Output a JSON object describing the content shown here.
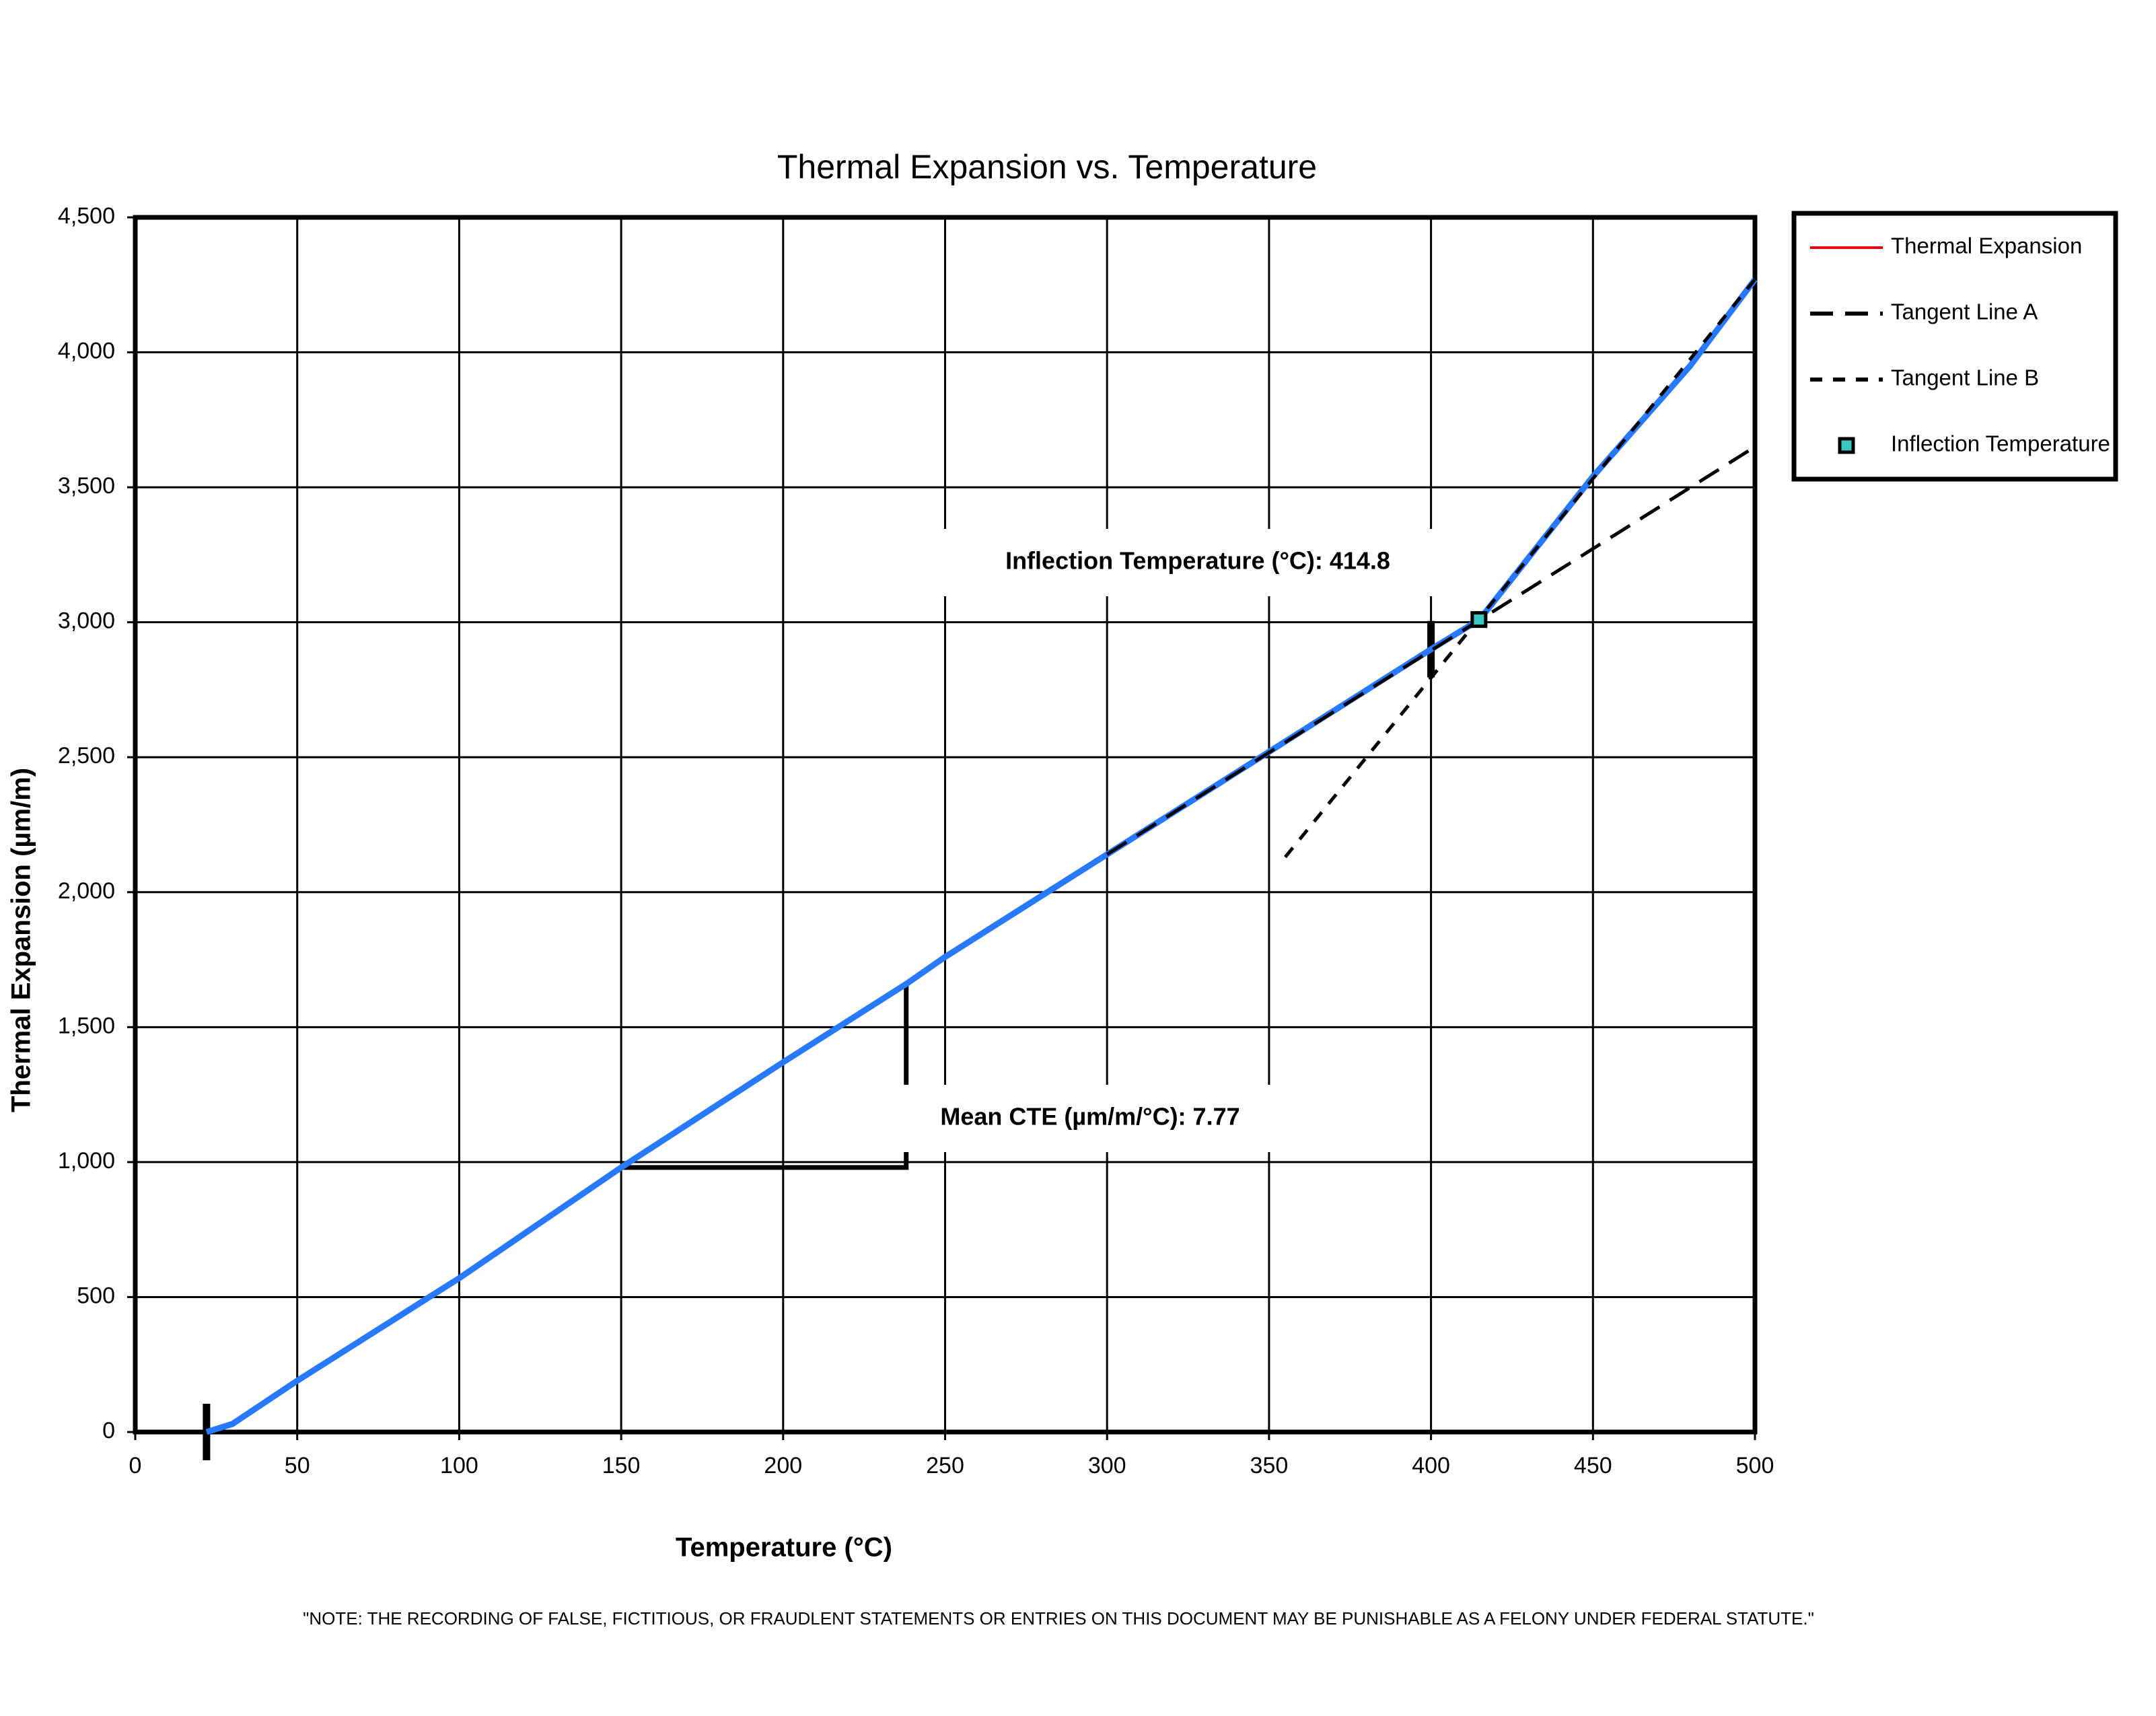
{
  "chart_data": {
    "type": "line",
    "title": "Thermal Expansion vs. Temperature",
    "x_label": "Temperature (°C)",
    "y_label": "Thermal Expansion (µm/m)",
    "note": "\"NOTE: THE RECORDING OF FALSE, FICTITIOUS, OR FRAUDLENT STATEMENTS OR ENTRIES ON THIS DOCUMENT MAY BE PUNISHABLE AS A FELONY UNDER FEDERAL STATUTE.\"",
    "annotations": [
      "Inflection Temperature (°C):  414.8",
      "Mean CTE (µm/m/°C): 7.77"
    ],
    "xlim": [
      0,
      500
    ],
    "xticks": [
      0,
      50,
      100,
      150,
      200,
      250,
      300,
      350,
      400,
      450,
      500
    ],
    "ylim": [
      0,
      4500
    ],
    "yticks": [
      0,
      500,
      {
        "value": 1000,
        "label": "1,000"
      },
      {
        "value": 1500,
        "label": "1,500"
      },
      {
        "value": 2000,
        "label": "2,000"
      },
      {
        "value": 2500,
        "label": "2,500"
      },
      {
        "value": 3000,
        "label": "3,000"
      },
      {
        "value": 3500,
        "label": "3,500"
      },
      {
        "value": 4000,
        "label": "4,000"
      },
      {
        "value": 4500,
        "label": "4,500"
      }
    ],
    "grid": true,
    "legend": "right",
    "series": [
      {
        "name": "Thermal Expansion",
        "color": "#2979ff",
        "style": "solid",
        "x": [
          22,
          30,
          50,
          100,
          150,
          200,
          238,
          250,
          300,
          350,
          400,
          415,
          450,
          480,
          500
        ],
        "values": [
          0,
          30,
          190,
          570,
          980,
          1370,
          1660,
          1760,
          2140,
          2520,
          2900,
          3010,
          3540,
          3950,
          4270
        ]
      },
      {
        "name": "Tangent Line A",
        "color": "#000000",
        "style": "long-dash",
        "x": [
          300,
          500
        ],
        "values": [
          2140,
          3650
        ]
      },
      {
        "name": "Tangent Line B",
        "color": "#000000",
        "style": "short-dash",
        "x": [
          355,
          500
        ],
        "values": [
          2130,
          4270
        ]
      },
      {
        "name": "Inflection Temperature",
        "color": "#3cc8c0",
        "style": "marker",
        "x": [
          414.8
        ],
        "values": [
          3010
        ]
      }
    ],
    "range_markers": {
      "x": [
        22,
        400
      ],
      "values": [
        0,
        2900
      ]
    },
    "cte_segment": {
      "x": [
        150,
        238
      ],
      "values": [
        980,
        1660
      ]
    }
  }
}
